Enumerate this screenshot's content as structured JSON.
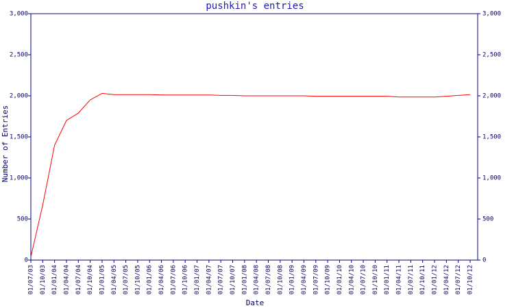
{
  "chart_data": {
    "type": "line",
    "title": "pushkin's entries",
    "x_label": "Date",
    "y_label": "Number of Entries",
    "categories": [
      "01/07/03",
      "01/10/03",
      "01/01/04",
      "01/04/04",
      "01/07/04",
      "01/10/04",
      "01/01/05",
      "01/04/05",
      "01/07/05",
      "01/10/05",
      "01/01/06",
      "01/04/06",
      "01/07/06",
      "01/10/06",
      "01/01/07",
      "01/04/07",
      "01/07/07",
      "01/10/07",
      "01/01/08",
      "01/04/08",
      "01/07/08",
      "01/10/08",
      "01/01/09",
      "01/04/09",
      "01/07/09",
      "01/10/09",
      "01/01/10",
      "01/04/10",
      "01/07/10",
      "01/10/10",
      "01/01/11",
      "01/04/11",
      "01/07/11",
      "01/10/11",
      "01/01/12",
      "01/04/12",
      "01/07/12",
      "01/10/12"
    ],
    "series": [
      {
        "name": "Entries",
        "color": "#ff0000",
        "values": [
          40,
          670,
          1400,
          1700,
          1790,
          1950,
          2030,
          2015,
          2015,
          2015,
          2015,
          2010,
          2010,
          2010,
          2010,
          2010,
          2005,
          2005,
          2000,
          2000,
          2000,
          2000,
          2000,
          2000,
          1995,
          1995,
          1995,
          1995,
          1995,
          1995,
          1995,
          1985,
          1985,
          1985,
          1985,
          1995,
          2005,
          2015
        ]
      }
    ],
    "ylim": [
      0,
      3000
    ],
    "yticks": [
      0,
      500,
      {
        "value": 1000,
        "label": "1,000"
      },
      {
        "value": 1500,
        "label": "1,500"
      },
      {
        "value": 2000,
        "label": "2,000"
      },
      {
        "value": 2500,
        "label": "2,500"
      },
      {
        "value": 3000,
        "label": "3,000"
      }
    ],
    "y2lim": [
      0,
      3000
    ],
    "y2ticks": [
      0,
      500,
      {
        "value": 1000,
        "label": "1,000"
      },
      {
        "value": 1500,
        "label": "1,500"
      },
      {
        "value": 2000,
        "label": "2,000"
      },
      {
        "value": 2500,
        "label": "2,500"
      },
      {
        "value": 3000,
        "label": "3,000"
      }
    ],
    "axis_color": "#000080",
    "grid": false
  }
}
